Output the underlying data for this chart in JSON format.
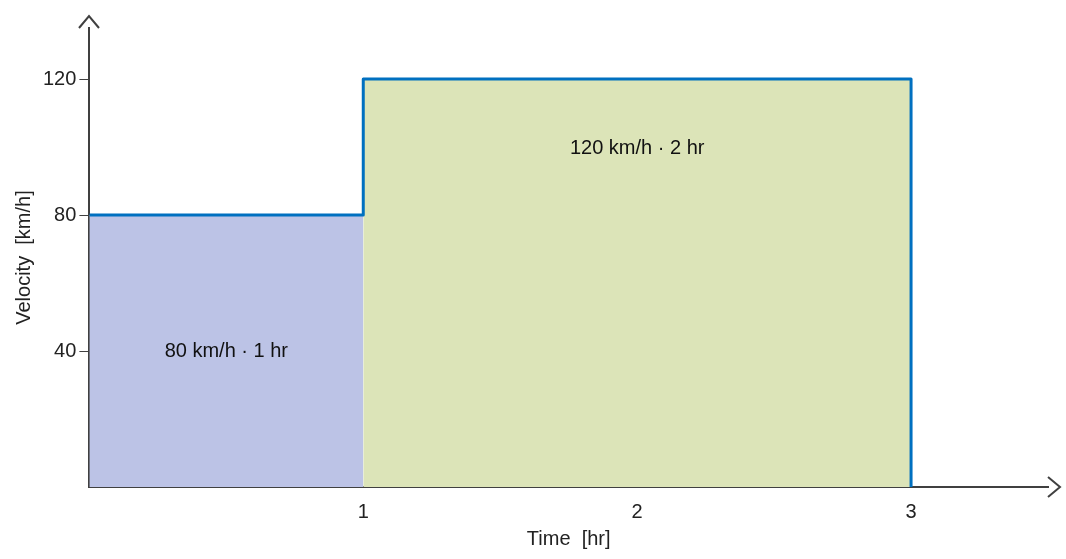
{
  "chart_data": {
    "type": "area",
    "xlabel": "Time  [hr]",
    "ylabel": "Velocity  [km/h]",
    "xlim": [
      0,
      3.5
    ],
    "xticks": [
      1,
      2,
      3
    ],
    "ylim": [
      0,
      135
    ],
    "yticks": [
      40,
      80,
      120
    ],
    "series": [
      {
        "x": [
          0,
          1
        ],
        "values": [
          80,
          80
        ],
        "color": "#bcc3e6"
      },
      {
        "x": [
          1,
          3
        ],
        "values": [
          120,
          120
        ],
        "color": "#dce4b8"
      },
      {
        "type": "line",
        "x": [
          0,
          1,
          1,
          3,
          3
        ],
        "values": [
          80,
          80,
          120,
          120,
          0
        ],
        "color": "#0070c0"
      }
    ],
    "annotations": [
      "80 km/h · 1 hr",
      "120 km/h · 2 hr"
    ]
  }
}
